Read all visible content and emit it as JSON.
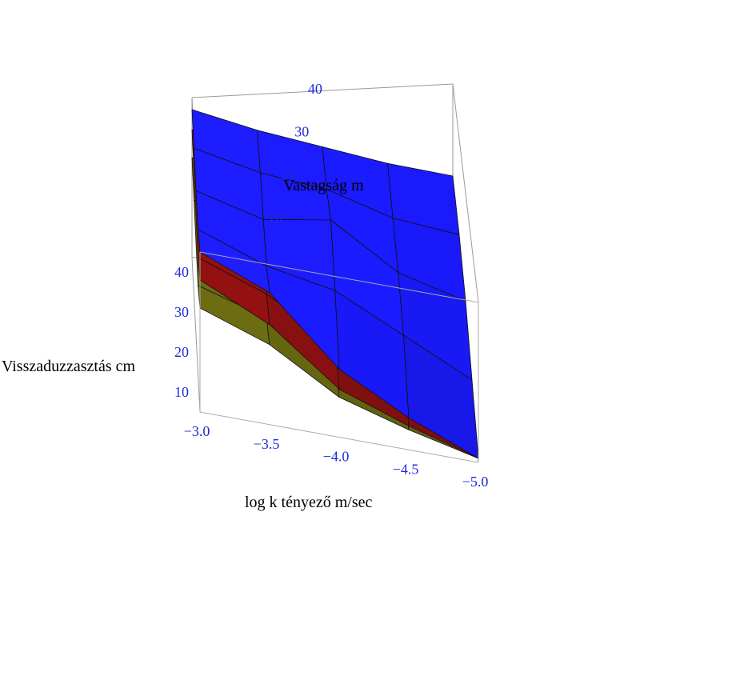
{
  "chart_data": {
    "type": "surface3d",
    "title": "",
    "xlabel": "log k tényező m/sec",
    "ylabel": "Vastagság m",
    "zlabel": "Visszaduzzasztás cm",
    "x": [
      -3.0,
      -3.5,
      -4.0,
      -4.5,
      -5.0
    ],
    "y": [
      5,
      15,
      25,
      35,
      45
    ],
    "xlim": [
      -3.0,
      -5.0
    ],
    "ylim": [
      5,
      45
    ],
    "zlim": [
      5,
      45
    ],
    "x_ticks": [
      "-3.0",
      "-3.5",
      "-4.0",
      "-4.5",
      "-5.0"
    ],
    "y_ticks": [
      "10",
      "20",
      "30",
      "40"
    ],
    "z_ticks": [
      "10",
      "20",
      "30",
      "40"
    ],
    "series": [
      {
        "color": "#6b6b12",
        "z": [
          [
            31,
            27,
            28,
            29,
            30
          ],
          [
            25,
            21,
            22,
            23,
            24
          ],
          [
            15,
            14,
            17,
            18,
            19
          ],
          [
            10,
            11,
            14,
            15,
            16
          ],
          [
            6,
            9,
            12,
            15,
            17
          ]
        ]
      },
      {
        "color": "#8b1010",
        "z": [
          [
            38,
            34,
            35,
            36,
            37
          ],
          [
            30,
            27,
            28,
            29,
            29
          ],
          [
            17,
            17,
            20,
            21,
            22
          ],
          [
            11,
            12,
            15,
            17,
            18
          ],
          [
            6,
            9,
            13,
            17,
            19
          ]
        ]
      },
      {
        "color": "#1a1aff",
        "z": [
          [
            45,
            41,
            41,
            42,
            42
          ],
          [
            38,
            34,
            35,
            36,
            36
          ],
          [
            22,
            30,
            36,
            32,
            31
          ],
          [
            13,
            21,
            24,
            25,
            26
          ],
          [
            6,
            12,
            18,
            21,
            22
          ]
        ]
      }
    ]
  }
}
